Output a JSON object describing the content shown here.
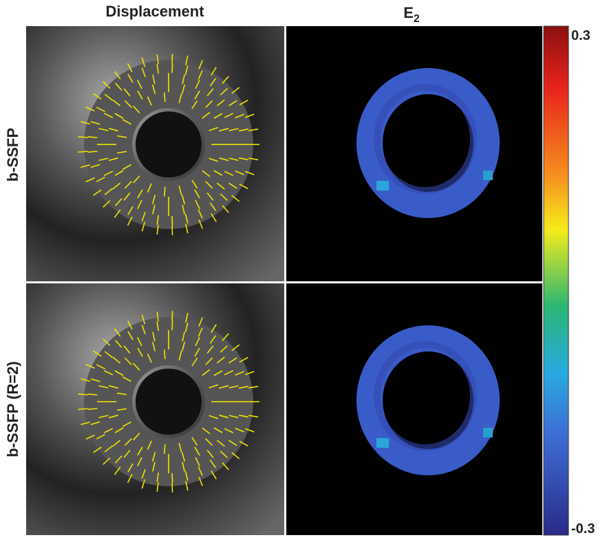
{
  "header": {
    "col1": "Displacement",
    "col2": {
      "text": "E",
      "subscript": "2"
    }
  },
  "rows": [
    "b-SSFP",
    "b-SSFP (R=2)"
  ],
  "colorbar": {
    "max": "0.3",
    "min": "-0.3"
  }
}
